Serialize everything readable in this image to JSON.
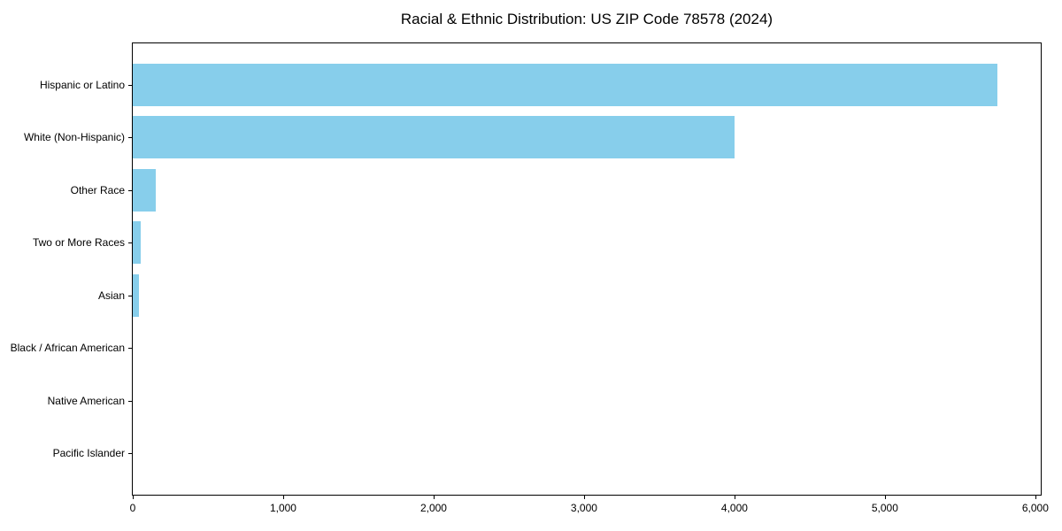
{
  "chart_data": {
    "type": "bar",
    "orientation": "horizontal",
    "title": "Racial & Ethnic Distribution: US ZIP Code 78578 (2024)",
    "categories": [
      "Hispanic or Latino",
      "White (Non-Hispanic)",
      "Other Race",
      "Two or More Races",
      "Asian",
      "Black / African American",
      "Native American",
      "Pacific Islander"
    ],
    "values": [
      5745,
      4000,
      155,
      55,
      43,
      0,
      0,
      0
    ],
    "xlim": [
      0,
      6036
    ],
    "x_ticks": [
      0,
      1000,
      2000,
      3000,
      4000,
      5000,
      6000
    ],
    "x_tick_labels": [
      "0",
      "1,000",
      "2,000",
      "3,000",
      "4,000",
      "5,000",
      "6,000"
    ],
    "xlabel": "",
    "ylabel": "",
    "bar_color": "#87CEEB",
    "background_color": "#ffffff",
    "grid": false,
    "legend": false
  }
}
